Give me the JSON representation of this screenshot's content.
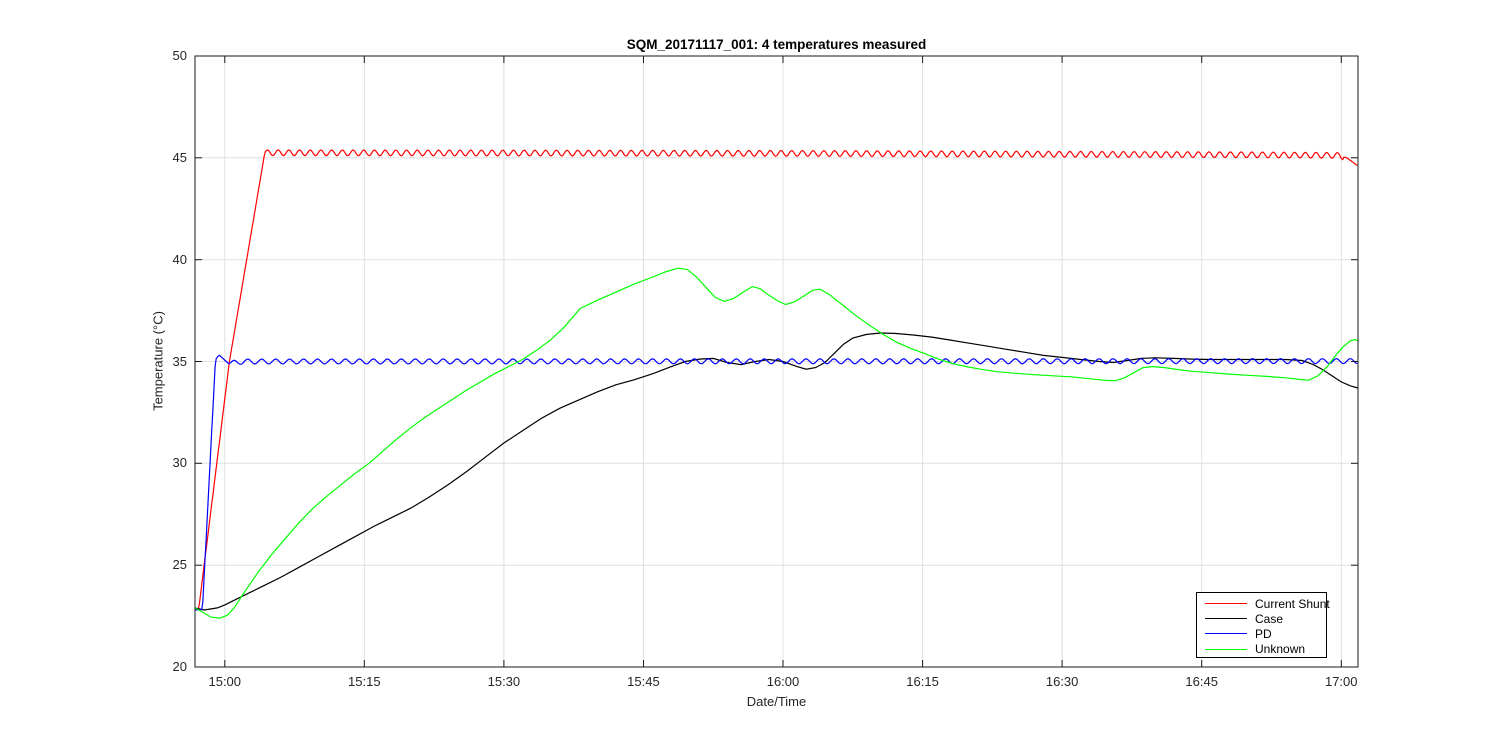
{
  "figure": {
    "background": "#ffffff"
  },
  "chart_data": {
    "type": "line",
    "title": "SQM_20171117_001: 4 temperatures measured",
    "xlabel": "Date/Time",
    "ylabel": "Temperature (°C)",
    "note": "x values in series points are minutes after 15:00",
    "x_range": [
      -3.2,
      121.8
    ],
    "y_range": [
      20,
      50
    ],
    "x_ticks": [
      {
        "t": 0,
        "label": "15:00"
      },
      {
        "t": 15,
        "label": "15:15"
      },
      {
        "t": 30,
        "label": "15:30"
      },
      {
        "t": 45,
        "label": "15:45"
      },
      {
        "t": 60,
        "label": "16:00"
      },
      {
        "t": 75,
        "label": "16:15"
      },
      {
        "t": 90,
        "label": "16:30"
      },
      {
        "t": 105,
        "label": "16:45"
      },
      {
        "t": 120,
        "label": "17:00"
      }
    ],
    "y_ticks": [
      20,
      25,
      30,
      35,
      40,
      45,
      50
    ],
    "grid": true,
    "legend": {
      "position": "inside-bottom-right",
      "border_color": "#000000",
      "background": "#ffffff"
    },
    "colors": {
      "grid": "#e0e0e0",
      "axis": "#1a1a1a",
      "tick_text": "#262626"
    },
    "series": [
      {
        "name": "Current Shunt",
        "color": "#ff0000",
        "points": [
          [
            -3.2,
            22.8
          ],
          [
            -2.8,
            22.85
          ],
          [
            0.5,
            35.0
          ],
          [
            4.3,
            45.25
          ],
          [
            60,
            45.22
          ],
          [
            110,
            45.15
          ],
          [
            119.6,
            45.12
          ],
          [
            120.6,
            45.0
          ],
          [
            121.8,
            44.6
          ]
        ],
        "oscillation": {
          "start": 4.3,
          "end": 120.2,
          "period": 1.15,
          "amplitude": 0.14,
          "waveform": "sin"
        }
      },
      {
        "name": "Case",
        "color": "#000000",
        "points": [
          [
            -3.2,
            22.9
          ],
          [
            -2.2,
            22.8
          ],
          [
            -0.8,
            22.9
          ],
          [
            0,
            23.05
          ],
          [
            2,
            23.5
          ],
          [
            4,
            23.95
          ],
          [
            6,
            24.4
          ],
          [
            8,
            24.9
          ],
          [
            10,
            25.4
          ],
          [
            12,
            25.9
          ],
          [
            14,
            26.4
          ],
          [
            16,
            26.9
          ],
          [
            18,
            27.35
          ],
          [
            20,
            27.8
          ],
          [
            22,
            28.35
          ],
          [
            24,
            28.95
          ],
          [
            26,
            29.6
          ],
          [
            28,
            30.3
          ],
          [
            30,
            31.0
          ],
          [
            32,
            31.6
          ],
          [
            34,
            32.2
          ],
          [
            36,
            32.7
          ],
          [
            38,
            33.1
          ],
          [
            40,
            33.5
          ],
          [
            42,
            33.85
          ],
          [
            44,
            34.1
          ],
          [
            46,
            34.4
          ],
          [
            48,
            34.75
          ],
          [
            49.5,
            35.0
          ],
          [
            51,
            35.12
          ],
          [
            52.5,
            35.15
          ],
          [
            54,
            34.95
          ],
          [
            55.5,
            34.85
          ],
          [
            57,
            35.0
          ],
          [
            58.5,
            35.1
          ],
          [
            60,
            35.0
          ],
          [
            61.5,
            34.75
          ],
          [
            62.5,
            34.62
          ],
          [
            63.5,
            34.7
          ],
          [
            64.5,
            34.95
          ],
          [
            65.5,
            35.4
          ],
          [
            66.5,
            35.85
          ],
          [
            67.5,
            36.15
          ],
          [
            69,
            36.33
          ],
          [
            70.5,
            36.4
          ],
          [
            72,
            36.38
          ],
          [
            74,
            36.3
          ],
          [
            76,
            36.2
          ],
          [
            78,
            36.05
          ],
          [
            80,
            35.9
          ],
          [
            82,
            35.75
          ],
          [
            84,
            35.6
          ],
          [
            86,
            35.45
          ],
          [
            88,
            35.3
          ],
          [
            90,
            35.2
          ],
          [
            92,
            35.1
          ],
          [
            94,
            35.0
          ],
          [
            95.5,
            34.95
          ],
          [
            97,
            35.05
          ],
          [
            98.5,
            35.15
          ],
          [
            100,
            35.18
          ],
          [
            102,
            35.15
          ],
          [
            104,
            35.12
          ],
          [
            106,
            35.1
          ],
          [
            108,
            35.1
          ],
          [
            110,
            35.1
          ],
          [
            112,
            35.1
          ],
          [
            114,
            35.1
          ],
          [
            115.8,
            35.05
          ],
          [
            117,
            34.85
          ],
          [
            118,
            34.6
          ],
          [
            119,
            34.3
          ],
          [
            120,
            34.0
          ],
          [
            121,
            33.8
          ],
          [
            121.8,
            33.7
          ]
        ]
      },
      {
        "name": "PD",
        "color": "#0000ff",
        "points": [
          [
            -3.2,
            22.8
          ],
          [
            -2.4,
            22.82
          ],
          [
            -1.0,
            35.1
          ],
          [
            -0.6,
            35.32
          ],
          [
            0.4,
            34.9
          ],
          [
            2,
            35.0
          ],
          [
            121.8,
            35.02
          ]
        ],
        "oscillation": {
          "start": 0.6,
          "end": 121.8,
          "period": 1.5,
          "amplitude": 0.12,
          "waveform": "sin"
        }
      },
      {
        "name": "Unknown",
        "color": "#00ff00",
        "points": [
          [
            -3.2,
            22.9
          ],
          [
            -2.4,
            22.7
          ],
          [
            -1.5,
            22.45
          ],
          [
            -0.5,
            22.4
          ],
          [
            0.3,
            22.55
          ],
          [
            1,
            22.9
          ],
          [
            2,
            23.6
          ],
          [
            3.5,
            24.6
          ],
          [
            5,
            25.5
          ],
          [
            6.5,
            26.3
          ],
          [
            8,
            27.1
          ],
          [
            9.5,
            27.8
          ],
          [
            11,
            28.4
          ],
          [
            12.5,
            28.95
          ],
          [
            14,
            29.5
          ],
          [
            15.5,
            30.0
          ],
          [
            17,
            30.6
          ],
          [
            18.5,
            31.2
          ],
          [
            20,
            31.75
          ],
          [
            21.5,
            32.25
          ],
          [
            23,
            32.7
          ],
          [
            24.5,
            33.15
          ],
          [
            26,
            33.6
          ],
          [
            27.5,
            34.0
          ],
          [
            29,
            34.4
          ],
          [
            30.5,
            34.75
          ],
          [
            32,
            35.1
          ],
          [
            33.5,
            35.55
          ],
          [
            35,
            36.05
          ],
          [
            36.5,
            36.7
          ],
          [
            38.2,
            37.6
          ],
          [
            40,
            38.0
          ],
          [
            42,
            38.4
          ],
          [
            44,
            38.8
          ],
          [
            46,
            39.15
          ],
          [
            47.5,
            39.42
          ],
          [
            48.7,
            39.58
          ],
          [
            49.7,
            39.52
          ],
          [
            50.7,
            39.15
          ],
          [
            51.7,
            38.65
          ],
          [
            52.7,
            38.15
          ],
          [
            53.7,
            37.95
          ],
          [
            54.7,
            38.1
          ],
          [
            55.7,
            38.4
          ],
          [
            56.7,
            38.68
          ],
          [
            57.5,
            38.58
          ],
          [
            58.5,
            38.25
          ],
          [
            59.5,
            37.95
          ],
          [
            60.3,
            37.8
          ],
          [
            61.2,
            37.92
          ],
          [
            62.2,
            38.2
          ],
          [
            63.2,
            38.5
          ],
          [
            64,
            38.55
          ],
          [
            65,
            38.28
          ],
          [
            66.2,
            37.85
          ],
          [
            67.7,
            37.3
          ],
          [
            69.2,
            36.8
          ],
          [
            70.7,
            36.35
          ],
          [
            72.2,
            35.95
          ],
          [
            73.7,
            35.65
          ],
          [
            75.2,
            35.4
          ],
          [
            76.7,
            35.12
          ],
          [
            78.2,
            34.9
          ],
          [
            79.7,
            34.75
          ],
          [
            81.2,
            34.62
          ],
          [
            83,
            34.5
          ],
          [
            85,
            34.42
          ],
          [
            87,
            34.35
          ],
          [
            89,
            34.3
          ],
          [
            91,
            34.25
          ],
          [
            93,
            34.15
          ],
          [
            94.7,
            34.07
          ],
          [
            95.7,
            34.05
          ],
          [
            96.7,
            34.2
          ],
          [
            97.7,
            34.45
          ],
          [
            98.7,
            34.7
          ],
          [
            99.7,
            34.75
          ],
          [
            101,
            34.7
          ],
          [
            102.5,
            34.6
          ],
          [
            104,
            34.52
          ],
          [
            106,
            34.45
          ],
          [
            108,
            34.38
          ],
          [
            110,
            34.32
          ],
          [
            112,
            34.27
          ],
          [
            114,
            34.2
          ],
          [
            115.5,
            34.12
          ],
          [
            116.5,
            34.08
          ],
          [
            117.5,
            34.3
          ],
          [
            118.5,
            34.75
          ],
          [
            119.4,
            35.3
          ],
          [
            120.2,
            35.72
          ],
          [
            121,
            36.02
          ],
          [
            121.5,
            36.08
          ],
          [
            121.8,
            36.0
          ]
        ]
      }
    ]
  }
}
